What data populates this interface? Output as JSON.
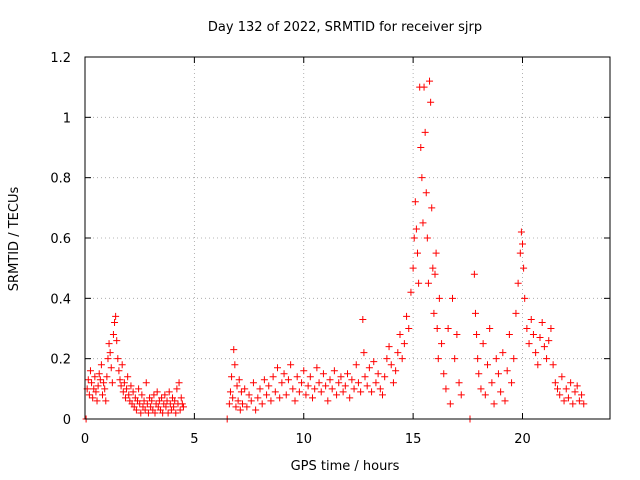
{
  "chart_data": {
    "type": "scatter",
    "title": "Day 132 of 2022, SRMTID for receiver sjrp",
    "xlabel": "GPS time / hours",
    "ylabel": "SRMTID / TECUs",
    "xlim": [
      0,
      24
    ],
    "ylim": [
      0,
      1.2
    ],
    "xticks": [
      0,
      5,
      10,
      15,
      20
    ],
    "xtick_labels": [
      "0",
      "5",
      "10",
      "15",
      "20"
    ],
    "yticks": [
      0,
      0.2,
      0.4,
      0.6,
      0.8,
      1.0,
      1.2
    ],
    "ytick_labels": [
      "0",
      "0.2",
      "0.4",
      "0.6",
      "0.8",
      "1",
      "1.2"
    ],
    "grid": true,
    "marker": "+",
    "color": "#ff0000",
    "series": [
      {
        "name": "SRMTID",
        "points": [
          [
            0.05,
            0.0
          ],
          [
            0.1,
            0.1
          ],
          [
            0.15,
            0.13
          ],
          [
            0.2,
            0.08
          ],
          [
            0.25,
            0.16
          ],
          [
            0.3,
            0.12
          ],
          [
            0.35,
            0.07
          ],
          [
            0.4,
            0.1
          ],
          [
            0.45,
            0.14
          ],
          [
            0.5,
            0.09
          ],
          [
            0.55,
            0.06
          ],
          [
            0.6,
            0.11
          ],
          [
            0.65,
            0.15
          ],
          [
            0.7,
            0.13
          ],
          [
            0.75,
            0.18
          ],
          [
            0.8,
            0.08
          ],
          [
            0.85,
            0.12
          ],
          [
            0.9,
            0.1
          ],
          [
            0.95,
            0.06
          ],
          [
            1.0,
            0.14
          ],
          [
            1.05,
            0.2
          ],
          [
            1.1,
            0.25
          ],
          [
            1.15,
            0.22
          ],
          [
            1.2,
            0.17
          ],
          [
            1.25,
            0.12
          ],
          [
            1.3,
            0.28
          ],
          [
            1.35,
            0.32
          ],
          [
            1.4,
            0.34
          ],
          [
            1.45,
            0.26
          ],
          [
            1.5,
            0.2
          ],
          [
            1.55,
            0.16
          ],
          [
            1.6,
            0.13
          ],
          [
            1.65,
            0.11
          ],
          [
            1.7,
            0.18
          ],
          [
            1.75,
            0.09
          ],
          [
            1.8,
            0.12
          ],
          [
            1.85,
            0.07
          ],
          [
            1.9,
            0.1
          ],
          [
            1.95,
            0.14
          ],
          [
            2.0,
            0.08
          ],
          [
            2.05,
            0.06
          ],
          [
            2.1,
            0.11
          ],
          [
            2.15,
            0.05
          ],
          [
            2.2,
            0.09
          ],
          [
            2.25,
            0.04
          ],
          [
            2.3,
            0.07
          ],
          [
            2.35,
            0.03
          ],
          [
            2.4,
            0.06
          ],
          [
            2.45,
            0.1
          ],
          [
            2.5,
            0.05
          ],
          [
            2.55,
            0.02
          ],
          [
            2.6,
            0.08
          ],
          [
            2.65,
            0.04
          ],
          [
            2.7,
            0.06
          ],
          [
            2.75,
            0.03
          ],
          [
            2.8,
            0.12
          ],
          [
            2.85,
            0.05
          ],
          [
            2.9,
            0.02
          ],
          [
            2.95,
            0.07
          ],
          [
            3.0,
            0.04
          ],
          [
            3.05,
            0.06
          ],
          [
            3.1,
            0.03
          ],
          [
            3.15,
            0.08
          ],
          [
            3.2,
            0.02
          ],
          [
            3.25,
            0.05
          ],
          [
            3.3,
            0.09
          ],
          [
            3.35,
            0.04
          ],
          [
            3.4,
            0.06
          ],
          [
            3.45,
            0.03
          ],
          [
            3.5,
            0.07
          ],
          [
            3.55,
            0.02
          ],
          [
            3.6,
            0.05
          ],
          [
            3.65,
            0.08
          ],
          [
            3.7,
            0.04
          ],
          [
            3.75,
            0.06
          ],
          [
            3.8,
            0.02
          ],
          [
            3.85,
            0.09
          ],
          [
            3.9,
            0.05
          ],
          [
            3.95,
            0.03
          ],
          [
            4.0,
            0.07
          ],
          [
            4.05,
            0.04
          ],
          [
            4.1,
            0.06
          ],
          [
            4.15,
            0.02
          ],
          [
            4.2,
            0.1
          ],
          [
            4.25,
            0.05
          ],
          [
            4.3,
            0.12
          ],
          [
            4.35,
            0.03
          ],
          [
            4.4,
            0.07
          ],
          [
            4.45,
            0.05
          ],
          [
            4.5,
            0.04
          ],
          [
            6.5,
            0.0
          ],
          [
            6.6,
            0.05
          ],
          [
            6.65,
            0.09
          ],
          [
            6.7,
            0.14
          ],
          [
            6.75,
            0.07
          ],
          [
            6.8,
            0.23
          ],
          [
            6.85,
            0.18
          ],
          [
            6.9,
            0.04
          ],
          [
            6.95,
            0.11
          ],
          [
            7.0,
            0.06
          ],
          [
            7.05,
            0.13
          ],
          [
            7.1,
            0.03
          ],
          [
            7.15,
            0.09
          ],
          [
            7.2,
            0.05
          ],
          [
            7.3,
            0.1
          ],
          [
            7.4,
            0.04
          ],
          [
            7.5,
            0.08
          ],
          [
            7.6,
            0.06
          ],
          [
            7.7,
            0.12
          ],
          [
            7.8,
            0.03
          ],
          [
            7.9,
            0.07
          ],
          [
            8.0,
            0.1
          ],
          [
            8.1,
            0.05
          ],
          [
            8.2,
            0.13
          ],
          [
            8.3,
            0.08
          ],
          [
            8.4,
            0.11
          ],
          [
            8.5,
            0.06
          ],
          [
            8.6,
            0.14
          ],
          [
            8.7,
            0.09
          ],
          [
            8.8,
            0.17
          ],
          [
            8.9,
            0.07
          ],
          [
            9.0,
            0.12
          ],
          [
            9.1,
            0.15
          ],
          [
            9.2,
            0.08
          ],
          [
            9.3,
            0.13
          ],
          [
            9.4,
            0.18
          ],
          [
            9.5,
            0.1
          ],
          [
            9.6,
            0.06
          ],
          [
            9.7,
            0.14
          ],
          [
            9.8,
            0.09
          ],
          [
            9.9,
            0.12
          ],
          [
            10.0,
            0.16
          ],
          [
            10.1,
            0.08
          ],
          [
            10.2,
            0.11
          ],
          [
            10.3,
            0.14
          ],
          [
            10.4,
            0.07
          ],
          [
            10.5,
            0.1
          ],
          [
            10.6,
            0.17
          ],
          [
            10.7,
            0.12
          ],
          [
            10.8,
            0.09
          ],
          [
            10.9,
            0.15
          ],
          [
            11.0,
            0.11
          ],
          [
            11.1,
            0.06
          ],
          [
            11.2,
            0.13
          ],
          [
            11.3,
            0.1
          ],
          [
            11.4,
            0.16
          ],
          [
            11.5,
            0.08
          ],
          [
            11.6,
            0.12
          ],
          [
            11.7,
            0.14
          ],
          [
            11.8,
            0.09
          ],
          [
            11.9,
            0.11
          ],
          [
            12.0,
            0.15
          ],
          [
            12.1,
            0.07
          ],
          [
            12.2,
            0.13
          ],
          [
            12.3,
            0.1
          ],
          [
            12.4,
            0.18
          ],
          [
            12.5,
            0.12
          ],
          [
            12.6,
            0.09
          ],
          [
            12.7,
            0.33
          ],
          [
            12.75,
            0.22
          ],
          [
            12.8,
            0.14
          ],
          [
            12.9,
            0.11
          ],
          [
            13.0,
            0.17
          ],
          [
            13.1,
            0.09
          ],
          [
            13.2,
            0.19
          ],
          [
            13.3,
            0.12
          ],
          [
            13.4,
            0.15
          ],
          [
            13.5,
            0.1
          ],
          [
            13.6,
            0.08
          ],
          [
            13.7,
            0.14
          ],
          [
            13.8,
            0.2
          ],
          [
            13.9,
            0.24
          ],
          [
            14.0,
            0.18
          ],
          [
            14.1,
            0.12
          ],
          [
            14.2,
            0.16
          ],
          [
            14.3,
            0.22
          ],
          [
            14.4,
            0.28
          ],
          [
            14.5,
            0.2
          ],
          [
            14.6,
            0.25
          ],
          [
            14.7,
            0.34
          ],
          [
            14.8,
            0.3
          ],
          [
            14.9,
            0.42
          ],
          [
            15.0,
            0.5
          ],
          [
            15.05,
            0.6
          ],
          [
            15.1,
            0.72
          ],
          [
            15.15,
            0.63
          ],
          [
            15.2,
            0.55
          ],
          [
            15.25,
            0.45
          ],
          [
            15.3,
            1.1
          ],
          [
            15.35,
            0.9
          ],
          [
            15.4,
            0.8
          ],
          [
            15.45,
            0.65
          ],
          [
            15.5,
            1.1
          ],
          [
            15.55,
            0.95
          ],
          [
            15.6,
            0.75
          ],
          [
            15.65,
            0.6
          ],
          [
            15.7,
            0.45
          ],
          [
            15.75,
            1.12
          ],
          [
            15.8,
            1.05
          ],
          [
            15.85,
            0.7
          ],
          [
            15.9,
            0.5
          ],
          [
            15.95,
            0.35
          ],
          [
            16.0,
            0.48
          ],
          [
            16.05,
            0.55
          ],
          [
            16.1,
            0.3
          ],
          [
            16.15,
            0.2
          ],
          [
            16.2,
            0.4
          ],
          [
            16.3,
            0.25
          ],
          [
            16.4,
            0.15
          ],
          [
            16.5,
            0.1
          ],
          [
            16.6,
            0.3
          ],
          [
            16.7,
            0.05
          ],
          [
            16.8,
            0.4
          ],
          [
            16.9,
            0.2
          ],
          [
            17.0,
            0.28
          ],
          [
            17.1,
            0.12
          ],
          [
            17.2,
            0.08
          ],
          [
            17.6,
            0.0
          ],
          [
            17.8,
            0.48
          ],
          [
            17.85,
            0.35
          ],
          [
            17.9,
            0.28
          ],
          [
            17.95,
            0.2
          ],
          [
            18.0,
            0.15
          ],
          [
            18.1,
            0.1
          ],
          [
            18.2,
            0.25
          ],
          [
            18.3,
            0.08
          ],
          [
            18.4,
            0.18
          ],
          [
            18.5,
            0.3
          ],
          [
            18.6,
            0.12
          ],
          [
            18.7,
            0.05
          ],
          [
            18.8,
            0.2
          ],
          [
            18.9,
            0.15
          ],
          [
            19.0,
            0.09
          ],
          [
            19.1,
            0.22
          ],
          [
            19.2,
            0.06
          ],
          [
            19.3,
            0.16
          ],
          [
            19.4,
            0.28
          ],
          [
            19.5,
            0.12
          ],
          [
            19.6,
            0.2
          ],
          [
            19.7,
            0.35
          ],
          [
            19.8,
            0.45
          ],
          [
            19.9,
            0.55
          ],
          [
            19.95,
            0.62
          ],
          [
            20.0,
            0.58
          ],
          [
            20.05,
            0.5
          ],
          [
            20.1,
            0.4
          ],
          [
            20.2,
            0.3
          ],
          [
            20.3,
            0.25
          ],
          [
            20.4,
            0.33
          ],
          [
            20.5,
            0.28
          ],
          [
            20.6,
            0.22
          ],
          [
            20.7,
            0.18
          ],
          [
            20.8,
            0.27
          ],
          [
            20.9,
            0.32
          ],
          [
            21.0,
            0.24
          ],
          [
            21.1,
            0.2
          ],
          [
            21.2,
            0.26
          ],
          [
            21.3,
            0.3
          ],
          [
            21.4,
            0.18
          ],
          [
            21.5,
            0.12
          ],
          [
            21.6,
            0.1
          ],
          [
            21.7,
            0.08
          ],
          [
            21.8,
            0.14
          ],
          [
            21.9,
            0.06
          ],
          [
            22.0,
            0.1
          ],
          [
            22.1,
            0.07
          ],
          [
            22.2,
            0.12
          ],
          [
            22.3,
            0.05
          ],
          [
            22.4,
            0.09
          ],
          [
            22.5,
            0.11
          ],
          [
            22.6,
            0.06
          ],
          [
            22.7,
            0.08
          ],
          [
            22.8,
            0.05
          ]
        ]
      }
    ]
  }
}
